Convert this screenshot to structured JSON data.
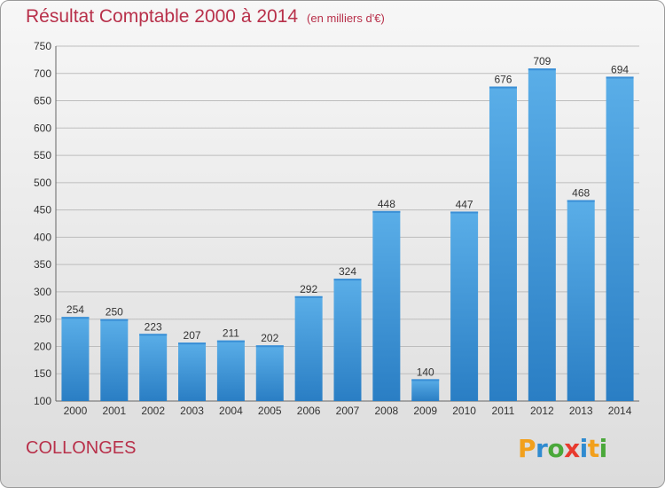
{
  "title": "Résultat Comptable 2000 à 2014",
  "unit": "(en milliers d'€)",
  "place": "COLLONGES",
  "logo": {
    "letters": [
      "P",
      "r",
      "o",
      "x",
      "i",
      "t",
      "i"
    ],
    "colors": [
      "#f2a01c",
      "#2f8bd0",
      "#4aa83a",
      "#e83a2e",
      "#2f8bd0",
      "#f2a01c",
      "#4aa83a"
    ]
  },
  "colors": {
    "bar": "#4a9de0",
    "bar_dark": "#2a7ec4",
    "title": "#b8304a",
    "grid": "#bdbdbd"
  },
  "chart_data": {
    "type": "bar",
    "categories": [
      "2000",
      "2001",
      "2002",
      "2003",
      "2004",
      "2005",
      "2006",
      "2007",
      "2008",
      "2009",
      "2010",
      "2011",
      "2012",
      "2013",
      "2014"
    ],
    "values": [
      254,
      250,
      223,
      207,
      211,
      202,
      292,
      324,
      448,
      140,
      447,
      676,
      709,
      468,
      694
    ],
    "ylim": [
      100,
      750
    ],
    "yticks": [
      100,
      150,
      200,
      250,
      300,
      350,
      400,
      450,
      500,
      550,
      600,
      650,
      700,
      750
    ],
    "grid": true,
    "title": "Résultat Comptable 2000 à 2014",
    "xlabel": "",
    "ylabel": ""
  }
}
